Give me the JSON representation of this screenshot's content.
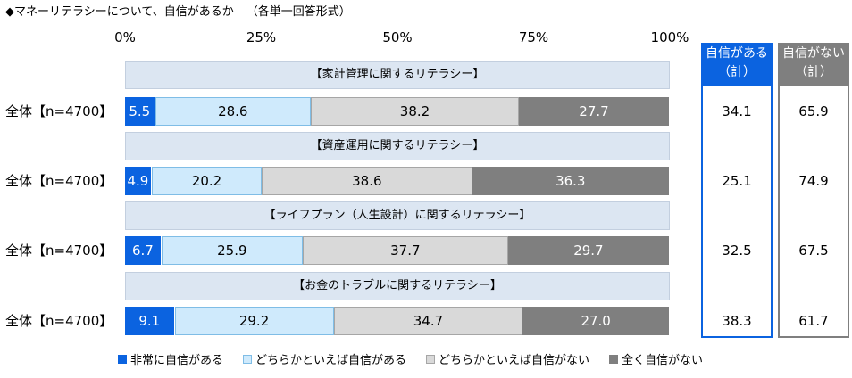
{
  "title": "◆マネーリテラシーについて、自信があるか",
  "subtitle": "（各単一回答形式）",
  "colors": {
    "s0": "#0b63e0",
    "s1": "#cfeafc",
    "s2": "#d9d9d9",
    "s3": "#7f7f7f",
    "band": "#dce6f2"
  },
  "chart_data": {
    "type": "bar",
    "orientation": "horizontal",
    "stacked": true,
    "percent": true,
    "xlim": [
      0,
      100
    ],
    "ticks": [
      "0%",
      "25%",
      "50%",
      "75%",
      "100%"
    ],
    "legend": {
      "position": "bottom",
      "labels": [
        "非常に自信がある",
        "どちらかといえば自信がある",
        "どちらかといえば自信がない",
        "全く自信がない"
      ]
    },
    "summary_headers": [
      "自信がある（計）",
      "自信がない（計）"
    ],
    "summary_head_lines": [
      [
        "自信がある",
        "（計）"
      ],
      [
        "自信がない",
        "（計）"
      ]
    ],
    "groups": [
      {
        "heading": "【家計管理に関するリテラシー】",
        "row_label": "全体【n=4700】",
        "values": [
          5.5,
          28.6,
          38.2,
          27.7
        ],
        "labels": [
          "5.5",
          "28.6",
          "38.2",
          "27.7"
        ],
        "confident_total": "34.1",
        "not_confident_total": "65.9"
      },
      {
        "heading": "【資産運用に関するリテラシー】",
        "row_label": "全体【n=4700】",
        "values": [
          4.9,
          20.2,
          38.6,
          36.3
        ],
        "labels": [
          "4.9",
          "20.2",
          "38.6",
          "36.3"
        ],
        "confident_total": "25.1",
        "not_confident_total": "74.9"
      },
      {
        "heading": "【ライフプラン（人生設計）に関するリテラシー】",
        "row_label": "全体【n=4700】",
        "values": [
          6.7,
          25.9,
          37.7,
          29.7
        ],
        "labels": [
          "6.7",
          "25.9",
          "37.7",
          "29.7"
        ],
        "confident_total": "32.5",
        "not_confident_total": "67.5"
      },
      {
        "heading": "【お金のトラブルに関するリテラシー】",
        "row_label": "全体【n=4700】",
        "values": [
          9.1,
          29.2,
          34.7,
          27.0
        ],
        "labels": [
          "9.1",
          "29.2",
          "34.7",
          "27.0"
        ],
        "confident_total": "38.3",
        "not_confident_total": "61.7"
      }
    ]
  }
}
